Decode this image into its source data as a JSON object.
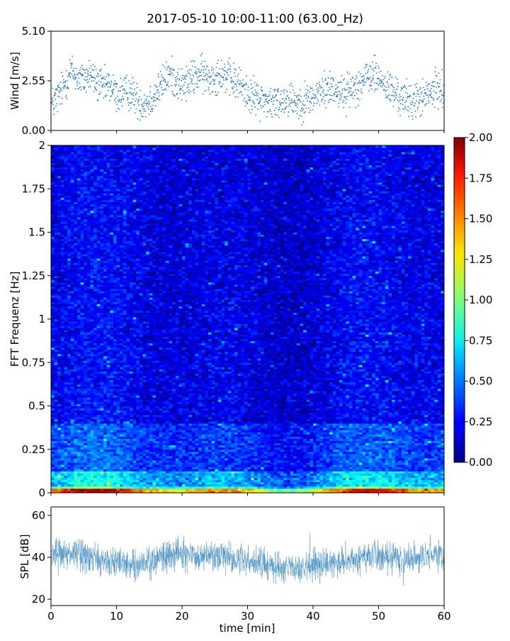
{
  "figure": {
    "title": "2017-05-10 10:00-11:00 (63.00_Hz)"
  },
  "chart_data": [
    {
      "type": "scatter",
      "ylabel": "Wind [m/s]",
      "xlim": [
        0,
        60
      ],
      "ylim": [
        0,
        5.1
      ],
      "yticks": [
        "0.00",
        "2.55",
        "5.10"
      ],
      "marker_color": "#1f77b4",
      "series": [
        {
          "x": [
            0,
            1,
            2,
            3,
            4,
            5,
            6,
            7,
            8,
            9,
            10,
            11,
            12,
            13,
            14,
            15,
            16,
            17,
            18,
            19,
            20,
            21,
            22,
            23,
            24,
            25,
            26,
            27,
            28,
            29,
            30,
            31,
            32,
            33,
            34,
            35,
            36,
            37,
            38,
            39,
            40,
            41,
            42,
            43,
            44,
            45,
            46,
            47,
            48,
            49,
            50,
            51,
            52,
            53,
            54,
            55,
            56,
            57,
            58,
            59,
            60
          ],
          "values": [
            1.3,
            1.7,
            2.3,
            3.1,
            2.7,
            2.6,
            2.9,
            2.4,
            2.2,
            2.3,
            1.8,
            1.9,
            2.0,
            1.6,
            1.4,
            1.5,
            1.9,
            2.4,
            2.9,
            2.6,
            2.3,
            2.5,
            2.8,
            2.9,
            2.7,
            2.8,
            3.0,
            2.7,
            2.5,
            2.3,
            1.9,
            1.7,
            1.6,
            1.5,
            1.4,
            1.5,
            1.7,
            1.6,
            1.4,
            1.6,
            1.7,
            1.9,
            2.1,
            2.2,
            2.0,
            1.9,
            2.2,
            2.4,
            2.6,
            2.9,
            2.7,
            2.3,
            2.0,
            1.8,
            1.6,
            1.5,
            1.6,
            1.7,
            1.9,
            2.2,
            2.0
          ]
        }
      ]
    },
    {
      "type": "heatmap",
      "ylabel": "FFT Frequenz [Hz]",
      "xlim": [
        0,
        60
      ],
      "ylim": [
        0,
        2
      ],
      "yticks": [
        "0",
        "0.25",
        "0.5",
        "0.75",
        "1",
        "1.25",
        "1.5",
        "1.75",
        "2"
      ],
      "colormap": "jet",
      "colorbar": {
        "range": [
          0,
          2
        ],
        "ticks": [
          "0.00",
          "0.25",
          "0.50",
          "0.75",
          "1.00",
          "1.25",
          "1.50",
          "1.75",
          "2.00"
        ]
      },
      "description_levels": {
        "frequency_bands_hz": [
          [
            0,
            0.02
          ],
          [
            0.02,
            0.1
          ],
          [
            0.1,
            0.4
          ],
          [
            0.4,
            2.0
          ]
        ],
        "typical_values": [
          1.8,
          0.75,
          0.4,
          0.25
        ]
      }
    },
    {
      "type": "line",
      "xlabel": "time [min]",
      "ylabel": "SPL [dB]",
      "xlim": [
        0,
        60
      ],
      "ylim": [
        17,
        64
      ],
      "yticks": [
        "20",
        "40",
        "60"
      ],
      "xticks": [
        "0",
        "10",
        "20",
        "30",
        "40",
        "50",
        "60"
      ],
      "line_color": "#1f77b4",
      "series": [
        {
          "x": [
            0,
            2,
            4,
            6,
            8,
            10,
            12,
            14,
            16,
            18,
            20,
            22,
            24,
            26,
            28,
            30,
            32,
            34,
            36,
            38,
            40,
            42,
            44,
            46,
            48,
            50,
            52,
            54,
            56,
            58,
            60
          ],
          "values": [
            41,
            42,
            41,
            40,
            37,
            38,
            37,
            36,
            39,
            41,
            42,
            41,
            42,
            41,
            39,
            38,
            37,
            36,
            35,
            34,
            36,
            37,
            38,
            39,
            41,
            41,
            40,
            39,
            40,
            41,
            40
          ]
        }
      ]
    }
  ]
}
